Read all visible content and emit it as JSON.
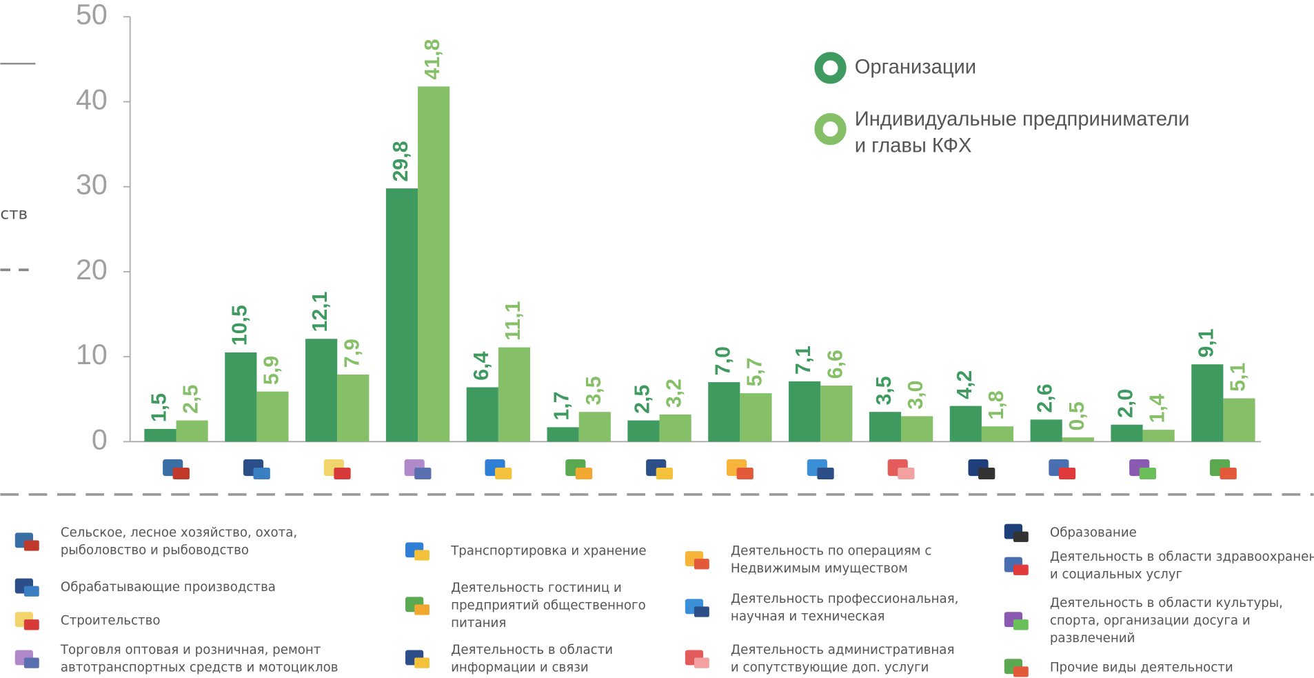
{
  "chart_data": {
    "type": "bar",
    "annotation": "ств",
    "categories": [
      "Сельское, лесное хозяйство, охота,\nрыболовство и рыбоводство",
      "Обрабатывающие производства",
      "Строительство",
      "Торговля оптовая и розничная, ремонт\nавтотранспортных средств и мотоциклов",
      "Транспортировка и хранение",
      "Деятельность гостиниц и\nпредприятий общественного\nпитания",
      "Деятельность в области\nинформации и связи",
      "Деятельность по операциям с\nНедвижимым имуществом",
      "Деятельность профессиональная,\nнаучная и техническая",
      "Деятельность административная\nи сопутствующие доп. услуги",
      "Образование",
      "Деятельность в области здравоохранения\nи социальных услуг",
      "Деятельность в области культуры,\nспорта, организации досуга и\nразвлечений",
      "Прочие виды деятельности"
    ],
    "series": [
      {
        "name": "Организации",
        "color": "#3f9a5f",
        "values": [
          1.5,
          10.5,
          12.1,
          29.8,
          6.4,
          1.7,
          2.5,
          7.0,
          7.1,
          3.5,
          4.2,
          2.6,
          2.0,
          9.1
        ],
        "value_labels": [
          "1,5",
          "10,5",
          "12,1",
          "29,8",
          "6,4",
          "1,7",
          "2,5",
          "7,0",
          "7,1",
          "3,5",
          "4,2",
          "2,6",
          "2,0",
          "9,1"
        ]
      },
      {
        "name": "Индивидуальные предприниматели\nи главы КФХ",
        "color": "#85c068",
        "values": [
          2.5,
          5.9,
          7.9,
          41.8,
          11.1,
          3.5,
          3.2,
          5.7,
          6.6,
          3.0,
          1.8,
          0.5,
          1.4,
          5.1
        ],
        "value_labels": [
          "2,5",
          "5,9",
          "7,9",
          "41,8",
          "11,1",
          "3,5",
          "3,2",
          "5,7",
          "6,6",
          "3,0",
          "1,8",
          "0,5",
          "1,4",
          "5,1"
        ]
      }
    ],
    "ylim": [
      0,
      50
    ],
    "yticks": [
      0,
      10,
      20,
      30,
      40,
      50
    ]
  }
}
